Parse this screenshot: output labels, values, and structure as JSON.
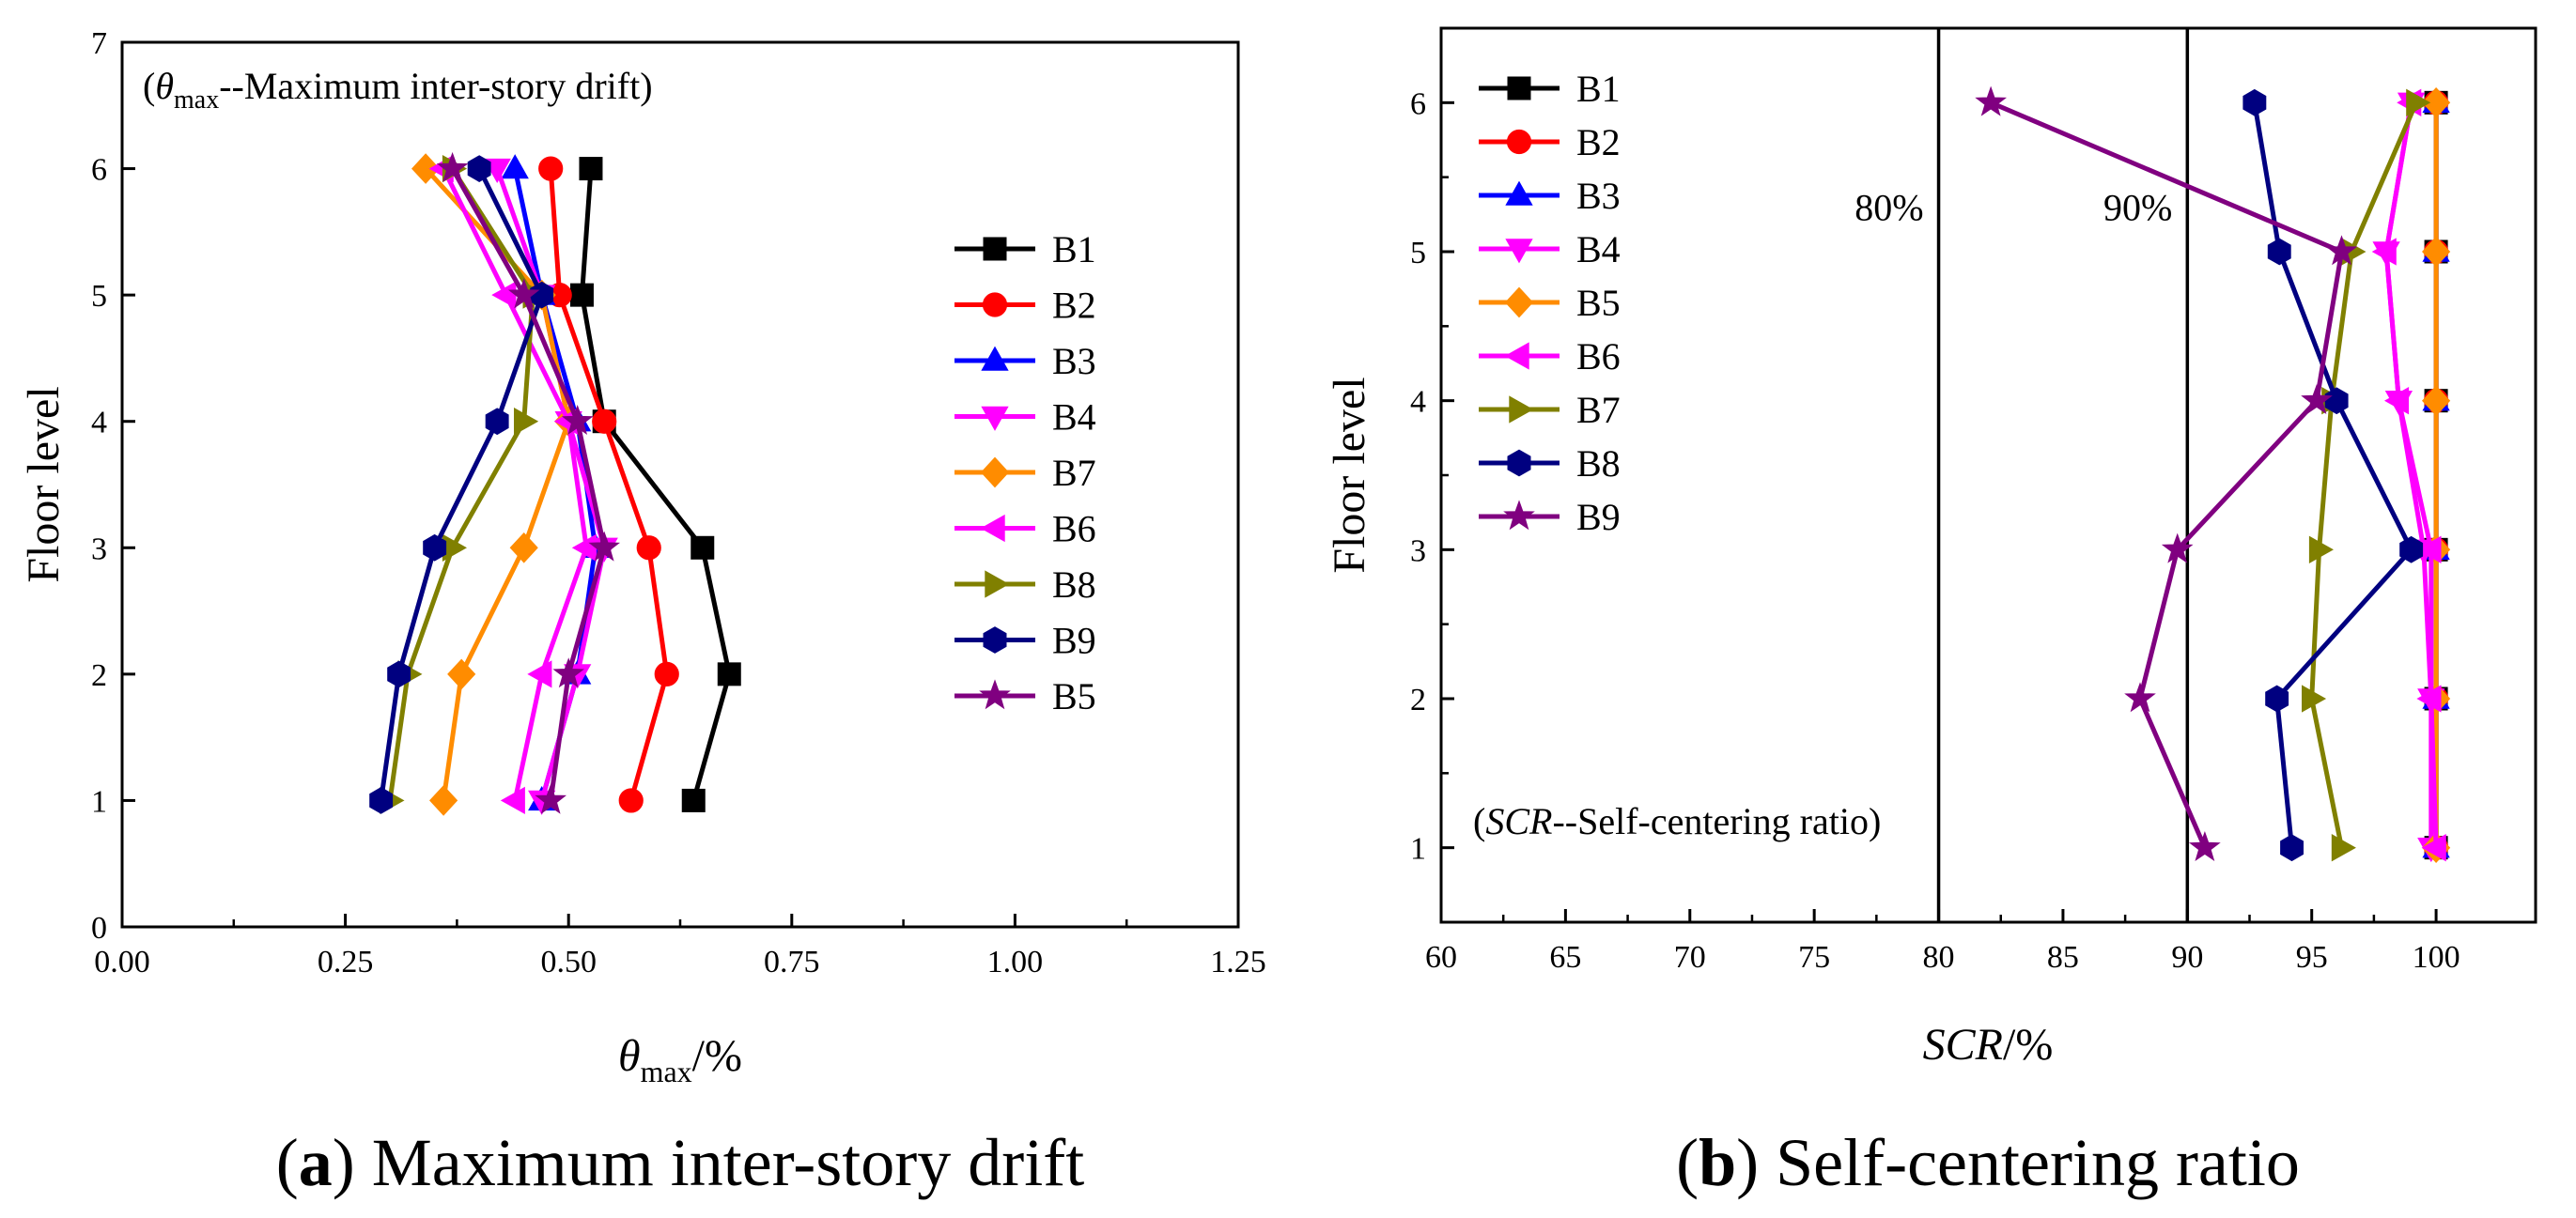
{
  "figure": {
    "caption_a_letter": "a",
    "caption_a_text": " Maximum inter-story drift",
    "caption_b_letter": "b",
    "caption_b_text": " Self-centering ratio"
  },
  "chart_data": [
    {
      "type": "line",
      "panel": "a",
      "xlabel_sym": "θ",
      "xlabel_sub": "max",
      "xlabel_unit": "/%",
      "ylabel": "Floor level",
      "xlim": [
        0,
        1.25
      ],
      "ylim": [
        0,
        7
      ],
      "xticks": [
        0.0,
        0.25,
        0.5,
        0.75,
        1.0,
        1.25
      ],
      "xtick_labels": [
        "0.00",
        "0.25",
        "0.50",
        "0.75",
        "1.00",
        "1.25"
      ],
      "yticks": [
        0,
        1,
        2,
        3,
        4,
        5,
        6,
        7
      ],
      "ytick_labels": [
        "0",
        "1",
        "2",
        "3",
        "4",
        "5",
        "6",
        "7"
      ],
      "annotation": {
        "pre": "(",
        "sym": "θ",
        "sub": "max",
        "post": "--Maximum inter-story drift)"
      },
      "legend_position": "right",
      "y": [
        1,
        2,
        3,
        4,
        5,
        6
      ],
      "series": [
        {
          "name": "B1",
          "color": "#000000",
          "marker": "square",
          "x": [
            0.64,
            0.68,
            0.65,
            0.54,
            0.515,
            0.525
          ]
        },
        {
          "name": "B2",
          "color": "#ff0000",
          "marker": "circle",
          "x": [
            0.57,
            0.61,
            0.59,
            0.54,
            0.49,
            0.48
          ]
        },
        {
          "name": "B3",
          "color": "#0000ff",
          "marker": "triangle-up",
          "x": [
            0.47,
            0.51,
            0.53,
            0.51,
            0.47,
            0.44
          ]
        },
        {
          "name": "B4",
          "color": "#ff00ff",
          "marker": "triangle-down",
          "x": [
            0.47,
            0.51,
            0.54,
            0.5,
            0.47,
            0.42
          ]
        },
        {
          "name": "B7",
          "color": "#ff8c00",
          "marker": "diamond",
          "x": [
            0.36,
            0.38,
            0.45,
            0.5,
            0.47,
            0.34
          ]
        },
        {
          "name": "B6",
          "color": "#ff00ff",
          "marker": "triangle-left",
          "x": [
            0.44,
            0.47,
            0.52,
            0.5,
            0.43,
            0.36
          ]
        },
        {
          "name": "B8",
          "color": "#808000",
          "marker": "triangle-right",
          "x": [
            0.3,
            0.32,
            0.37,
            0.45,
            0.46,
            0.37
          ]
        },
        {
          "name": "B9",
          "color": "#000080",
          "marker": "hexagon",
          "x": [
            0.29,
            0.31,
            0.35,
            0.42,
            0.47,
            0.4
          ]
        },
        {
          "name": "B5",
          "color": "#800080",
          "marker": "star",
          "x": [
            0.48,
            0.5,
            0.54,
            0.51,
            0.45,
            0.37
          ]
        }
      ]
    },
    {
      "type": "line",
      "panel": "b",
      "xlabel_sym": "SCR",
      "xlabel_unit": "/%",
      "ylabel": "Floor level",
      "xlim": [
        60,
        104
      ],
      "ylim": [
        0.5,
        6.5
      ],
      "xticks": [
        60,
        65,
        70,
        75,
        80,
        85,
        90,
        95,
        100
      ],
      "xtick_labels": [
        "60",
        "65",
        "70",
        "75",
        "80",
        "85",
        "90",
        "95",
        "100"
      ],
      "yticks": [
        1,
        2,
        3,
        4,
        5,
        6
      ],
      "ytick_labels": [
        "1",
        "2",
        "3",
        "4",
        "5",
        "6"
      ],
      "annotation": {
        "pre": "(",
        "sym": "SCR",
        "post": "--Self-centering ratio)"
      },
      "reference_lines": [
        {
          "x": 80,
          "label": "80%"
        },
        {
          "x": 90,
          "label": "90%"
        }
      ],
      "legend_position": "top-left",
      "y": [
        1,
        2,
        3,
        4,
        5,
        6
      ],
      "series": [
        {
          "name": "B1",
          "color": "#000000",
          "marker": "square",
          "x": [
            100,
            100,
            100,
            100,
            100,
            100
          ]
        },
        {
          "name": "B2",
          "color": "#ff0000",
          "marker": "circle",
          "x": [
            100,
            100,
            100,
            100,
            100,
            100
          ]
        },
        {
          "name": "B3",
          "color": "#0000ff",
          "marker": "triangle-up",
          "x": [
            100,
            100,
            100,
            100,
            100,
            100
          ]
        },
        {
          "name": "B4",
          "color": "#ff00ff",
          "marker": "triangle-down",
          "x": [
            99.8,
            99.8,
            99.5,
            98.5,
            98,
            99
          ]
        },
        {
          "name": "B5",
          "color": "#ff8c00",
          "marker": "diamond",
          "x": [
            100,
            100,
            100,
            100,
            100,
            100
          ]
        },
        {
          "name": "B6",
          "color": "#ff00ff",
          "marker": "triangle-left",
          "x": [
            100,
            99.8,
            99.8,
            98.5,
            98,
            99
          ]
        },
        {
          "name": "B7",
          "color": "#808000",
          "marker": "triangle-right",
          "x": [
            96.2,
            95,
            95.3,
            95.8,
            96.6,
            99.2
          ]
        },
        {
          "name": "B8",
          "color": "#000080",
          "marker": "hexagon",
          "x": [
            94.2,
            93.6,
            99,
            96,
            93.7,
            92.7
          ]
        },
        {
          "name": "B9",
          "color": "#800080",
          "marker": "star",
          "x": [
            90.7,
            88.1,
            89.6,
            95.2,
            96.2,
            82.1
          ]
        }
      ]
    }
  ]
}
